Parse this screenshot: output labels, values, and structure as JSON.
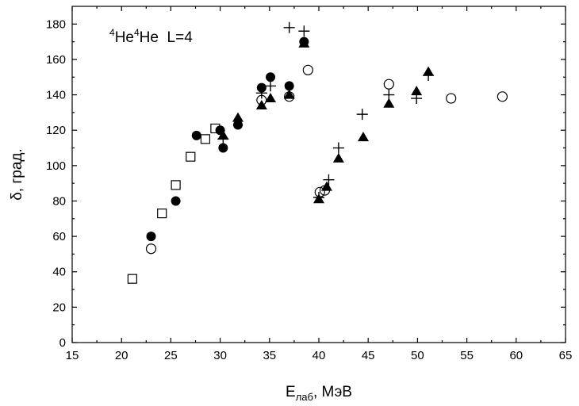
{
  "chart_data": {
    "type": "scatter",
    "title": "",
    "xlabel": {
      "main": "E",
      "sub": "лаб",
      "suffix": ", МэВ"
    },
    "ylabel": "δ, град.",
    "xlim": [
      15,
      65
    ],
    "ylim": [
      0,
      190
    ],
    "xticks": [
      15,
      20,
      25,
      30,
      35,
      40,
      45,
      50,
      55,
      60,
      65
    ],
    "yticks": [
      0,
      20,
      40,
      60,
      80,
      100,
      120,
      140,
      160,
      180
    ],
    "grid": false,
    "annotation": {
      "sup1": "4",
      "t1": "He",
      "sup2": "4",
      "t2": "He",
      "t3": "  L=4"
    },
    "series": [
      {
        "marker": "open-square",
        "points": [
          [
            21.1,
            36
          ],
          [
            24.1,
            73
          ],
          [
            25.5,
            89
          ],
          [
            27.0,
            105
          ],
          [
            28.5,
            115
          ],
          [
            29.5,
            121
          ]
        ]
      },
      {
        "marker": "filled-circle",
        "points": [
          [
            23.0,
            60
          ],
          [
            25.5,
            80
          ],
          [
            27.6,
            117
          ],
          [
            30.0,
            120
          ],
          [
            30.3,
            110
          ],
          [
            31.8,
            123
          ],
          [
            34.2,
            144
          ],
          [
            35.1,
            150
          ],
          [
            37.0,
            145
          ],
          [
            38.5,
            170
          ]
        ]
      },
      {
        "marker": "open-circle",
        "points": [
          [
            23.0,
            53
          ],
          [
            34.2,
            137
          ],
          [
            37.0,
            139
          ],
          [
            38.9,
            154
          ],
          [
            40.1,
            85
          ],
          [
            40.6,
            86
          ],
          [
            47.1,
            146
          ],
          [
            53.4,
            138
          ],
          [
            58.6,
            139
          ]
        ]
      },
      {
        "marker": "filled-triangle",
        "points": [
          [
            30.3,
            117
          ],
          [
            31.8,
            127
          ],
          [
            34.2,
            134
          ],
          [
            35.1,
            138
          ],
          [
            37.0,
            140
          ],
          [
            38.5,
            169
          ],
          [
            40.0,
            81
          ],
          [
            40.8,
            88
          ],
          [
            42.0,
            104
          ],
          [
            44.5,
            116
          ],
          [
            47.1,
            135
          ],
          [
            49.9,
            142
          ],
          [
            51.1,
            153
          ]
        ]
      },
      {
        "marker": "plus",
        "points": [
          [
            30.3,
            115
          ],
          [
            34.2,
            141
          ],
          [
            35.1,
            145
          ],
          [
            37.0,
            178
          ],
          [
            38.5,
            176
          ],
          [
            40.0,
            82
          ],
          [
            41.0,
            92
          ],
          [
            42.0,
            110
          ],
          [
            44.4,
            129
          ],
          [
            47.1,
            140
          ],
          [
            49.9,
            138
          ],
          [
            51.1,
            151
          ]
        ]
      }
    ]
  }
}
